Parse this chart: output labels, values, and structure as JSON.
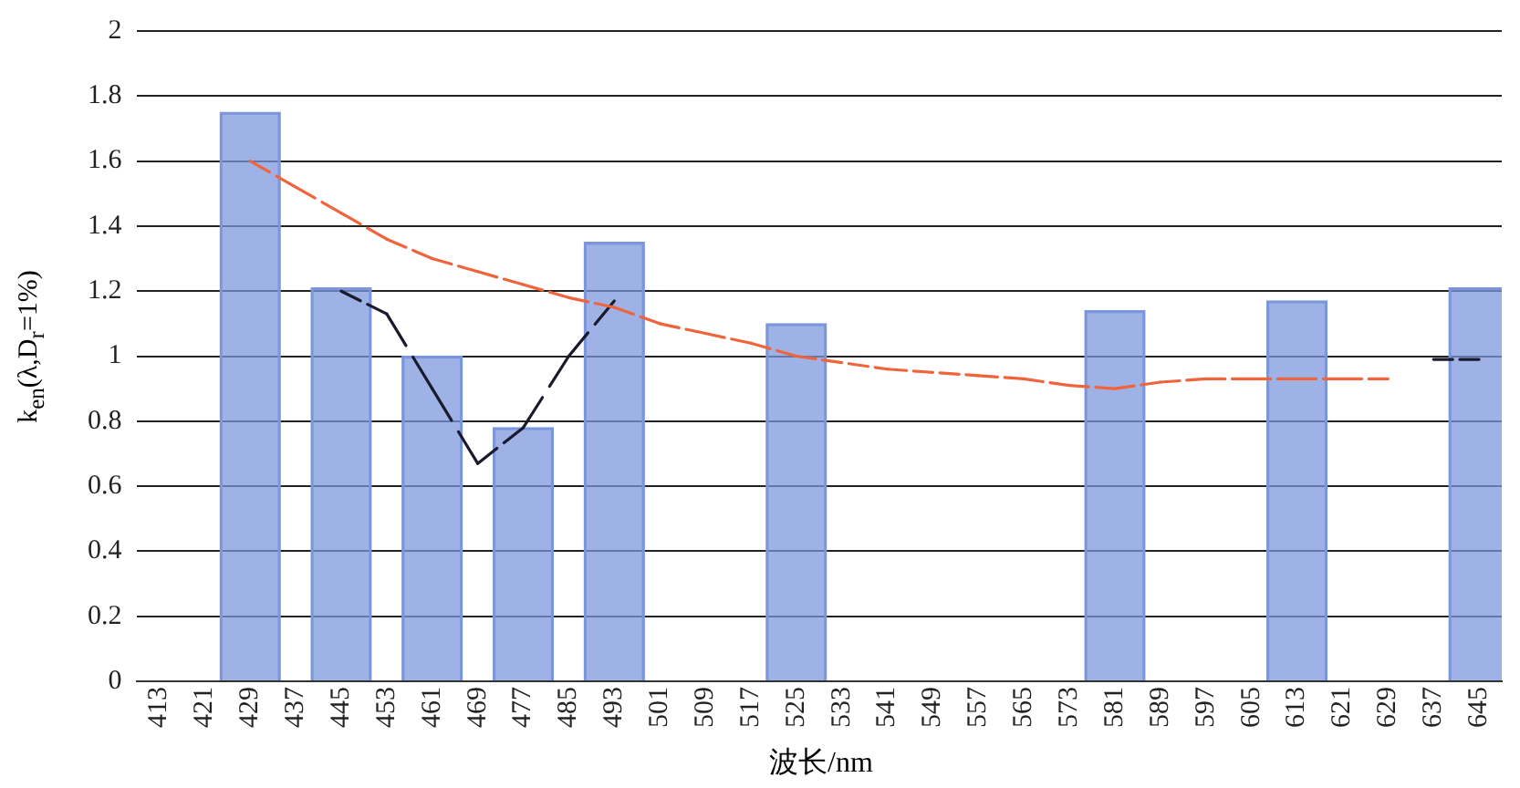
{
  "chart_data": {
    "type": "bar",
    "xlabel": "波长/nm",
    "ylabel": "k$_{en}$(λ,D$_{r}$=1%)",
    "categories": [
      "413",
      "421",
      "429",
      "437",
      "445",
      "453",
      "461",
      "469",
      "477",
      "485",
      "493",
      "501",
      "509",
      "517",
      "525",
      "533",
      "541",
      "549",
      "557",
      "565",
      "573",
      "581",
      "589",
      "597",
      "605",
      "613",
      "621",
      "629",
      "637",
      "645"
    ],
    "series": [
      {
        "color": "#7b96dc",
        "values": [
          null,
          null,
          1.75,
          null,
          1.21,
          null,
          1.0,
          null,
          0.78,
          null,
          1.35,
          null,
          null,
          null,
          1.1,
          null,
          null,
          null,
          null,
          null,
          null,
          1.14,
          null,
          null,
          null,
          1.17,
          null,
          null,
          null,
          1.21
        ]
      },
      {
        "type": "line",
        "color": "#f0643c",
        "line_style": "dashed",
        "values": [
          null,
          null,
          1.6,
          1.52,
          1.44,
          1.36,
          1.3,
          1.26,
          1.22,
          1.18,
          1.15,
          1.1,
          1.07,
          1.04,
          1.0,
          0.98,
          0.96,
          0.95,
          0.94,
          0.93,
          0.91,
          0.9,
          0.92,
          0.93,
          0.93,
          0.93,
          0.93,
          0.93,
          null,
          null
        ]
      },
      {
        "type": "line",
        "color": "#1a1a2e",
        "line_style": "dashed",
        "values": [
          null,
          null,
          null,
          null,
          1.2,
          1.13,
          0.9,
          0.67,
          0.78,
          1.0,
          1.17,
          null,
          null,
          null,
          null,
          null,
          null,
          null,
          null,
          null,
          null,
          null,
          null,
          null,
          null,
          null,
          null,
          null,
          0.99,
          0.99
        ]
      }
    ],
    "ylim": [
      0,
      2
    ],
    "yticks": [
      0,
      0.2,
      0.4,
      0.6,
      0.8,
      1,
      1.2,
      1.4,
      1.6,
      1.8,
      2
    ],
    "grid": "y",
    "legend": false,
    "marker": "none"
  }
}
